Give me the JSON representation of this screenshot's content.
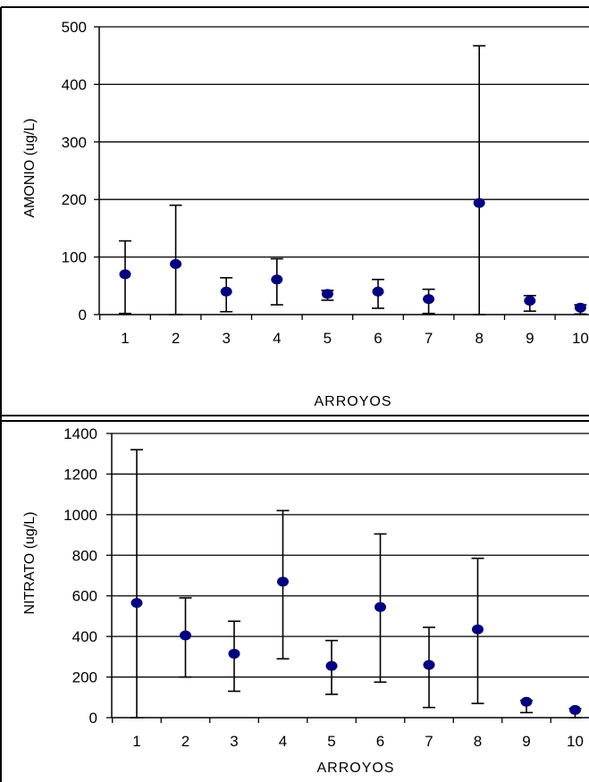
{
  "chart_data": [
    {
      "type": "scatter",
      "title": "",
      "xlabel": "ARROYOS",
      "ylabel": "AMONIO (ug/L)",
      "ylim": [
        0,
        500
      ],
      "yticks": [
        "0",
        "100",
        "200",
        "300",
        "400",
        "500"
      ],
      "categories": [
        "1",
        "2",
        "3",
        "4",
        "5",
        "6",
        "7",
        "8",
        "9",
        "10"
      ],
      "grid": true,
      "series": [
        {
          "values": [
            70,
            88,
            40,
            61,
            36,
            40,
            27,
            194,
            24,
            12
          ],
          "error_low": [
            2,
            0,
            5,
            17,
            25,
            11,
            2,
            0,
            6,
            1
          ],
          "error_high": [
            128,
            190,
            64,
            97,
            42,
            61,
            44,
            467,
            33,
            17
          ]
        }
      ]
    },
    {
      "type": "scatter",
      "title": "",
      "xlabel": "ARROYOS",
      "ylabel": "NITRATO (ug/L)",
      "ylim": [
        0,
        1400
      ],
      "yticks": [
        "0",
        "200",
        "400",
        "600",
        "800",
        "1000",
        "1200",
        "1400"
      ],
      "categories": [
        "1",
        "2",
        "3",
        "4",
        "5",
        "6",
        "7",
        "8",
        "9",
        "10"
      ],
      "grid": true,
      "series": [
        {
          "values": [
            565,
            405,
            315,
            670,
            255,
            545,
            260,
            435,
            78,
            38
          ],
          "error_low": [
            0,
            200,
            130,
            290,
            115,
            175,
            50,
            70,
            25,
            0
          ],
          "error_high": [
            1320,
            590,
            475,
            1020,
            380,
            905,
            445,
            785,
            85,
            45
          ]
        }
      ]
    }
  ],
  "colors": {
    "marker": "#000080",
    "line": "#000000",
    "grid": "#000000"
  }
}
